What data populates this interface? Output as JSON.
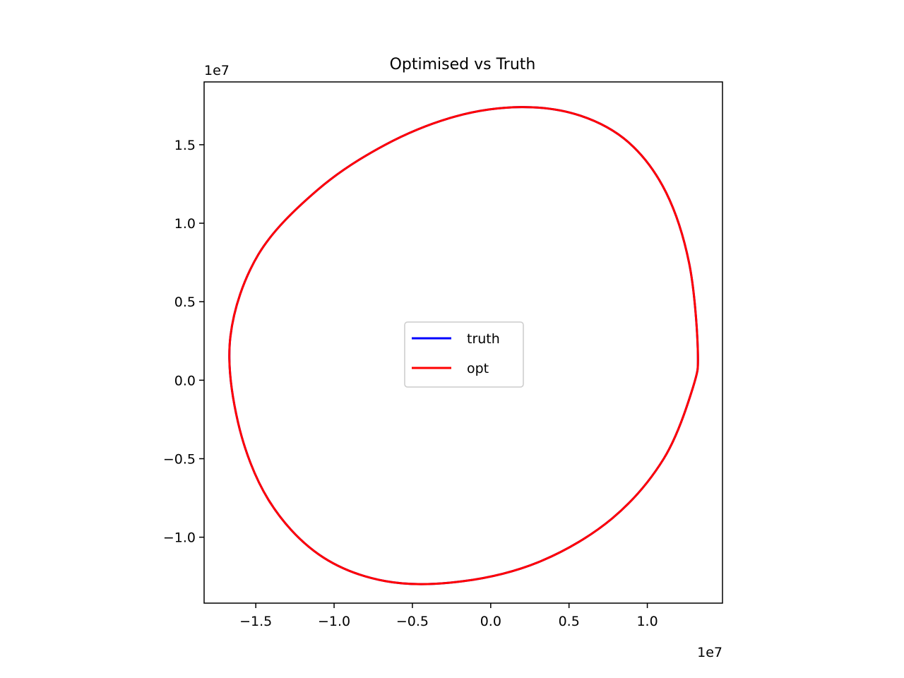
{
  "chart_data": {
    "type": "line",
    "title": "Optimised vs Truth",
    "xlabel": "",
    "ylabel": "",
    "x_offset_text": "1e7",
    "y_offset_text": "1e7",
    "xlim": [
      -1.83,
      1.48
    ],
    "ylim": [
      -1.42,
      1.9
    ],
    "xticks": [
      -1.5,
      -1.0,
      -0.5,
      0.0,
      0.5,
      1.0
    ],
    "xtick_labels": [
      "−1.5",
      "−1.0",
      "−0.5",
      "0.0",
      "0.5",
      "1.0"
    ],
    "yticks": [
      -1.0,
      -0.5,
      0.0,
      0.5,
      1.0,
      1.5
    ],
    "ytick_labels": [
      "−1.0",
      "−0.5",
      "0.0",
      "0.5",
      "1.0",
      "1.5"
    ],
    "grid": false,
    "aspect": "equal",
    "legend": {
      "position": "center",
      "entries": [
        "truth",
        "opt"
      ]
    },
    "series": [
      {
        "name": "truth",
        "color": "#0000ff",
        "x": [
          1.322,
          1.267,
          1.12,
          0.886,
          0.573,
          0.196,
          -0.226,
          -0.673,
          -1.108,
          -1.484,
          -1.662,
          -1.613,
          -1.42,
          -1.097,
          -0.671,
          -0.175,
          0.326,
          0.776,
          1.105,
          1.29,
          1.322
        ],
        "y": [
          0.2,
          0.745,
          1.195,
          1.51,
          1.685,
          1.74,
          1.68,
          1.5,
          1.21,
          0.8,
          0.28,
          -0.27,
          -0.76,
          -1.11,
          -1.28,
          -1.28,
          -1.15,
          -0.88,
          -0.5,
          -0.05,
          0.2
        ]
      },
      {
        "name": "opt",
        "color": "#ff0000",
        "x": [
          1.322,
          1.267,
          1.12,
          0.886,
          0.573,
          0.196,
          -0.226,
          -0.673,
          -1.108,
          -1.484,
          -1.662,
          -1.613,
          -1.42,
          -1.097,
          -0.671,
          -0.175,
          0.326,
          0.776,
          1.105,
          1.29,
          1.322
        ],
        "y": [
          0.2,
          0.745,
          1.195,
          1.51,
          1.685,
          1.74,
          1.68,
          1.5,
          1.21,
          0.8,
          0.28,
          -0.27,
          -0.76,
          -1.11,
          -1.28,
          -1.28,
          -1.15,
          -0.88,
          -0.5,
          -0.05,
          0.2
        ]
      }
    ]
  }
}
